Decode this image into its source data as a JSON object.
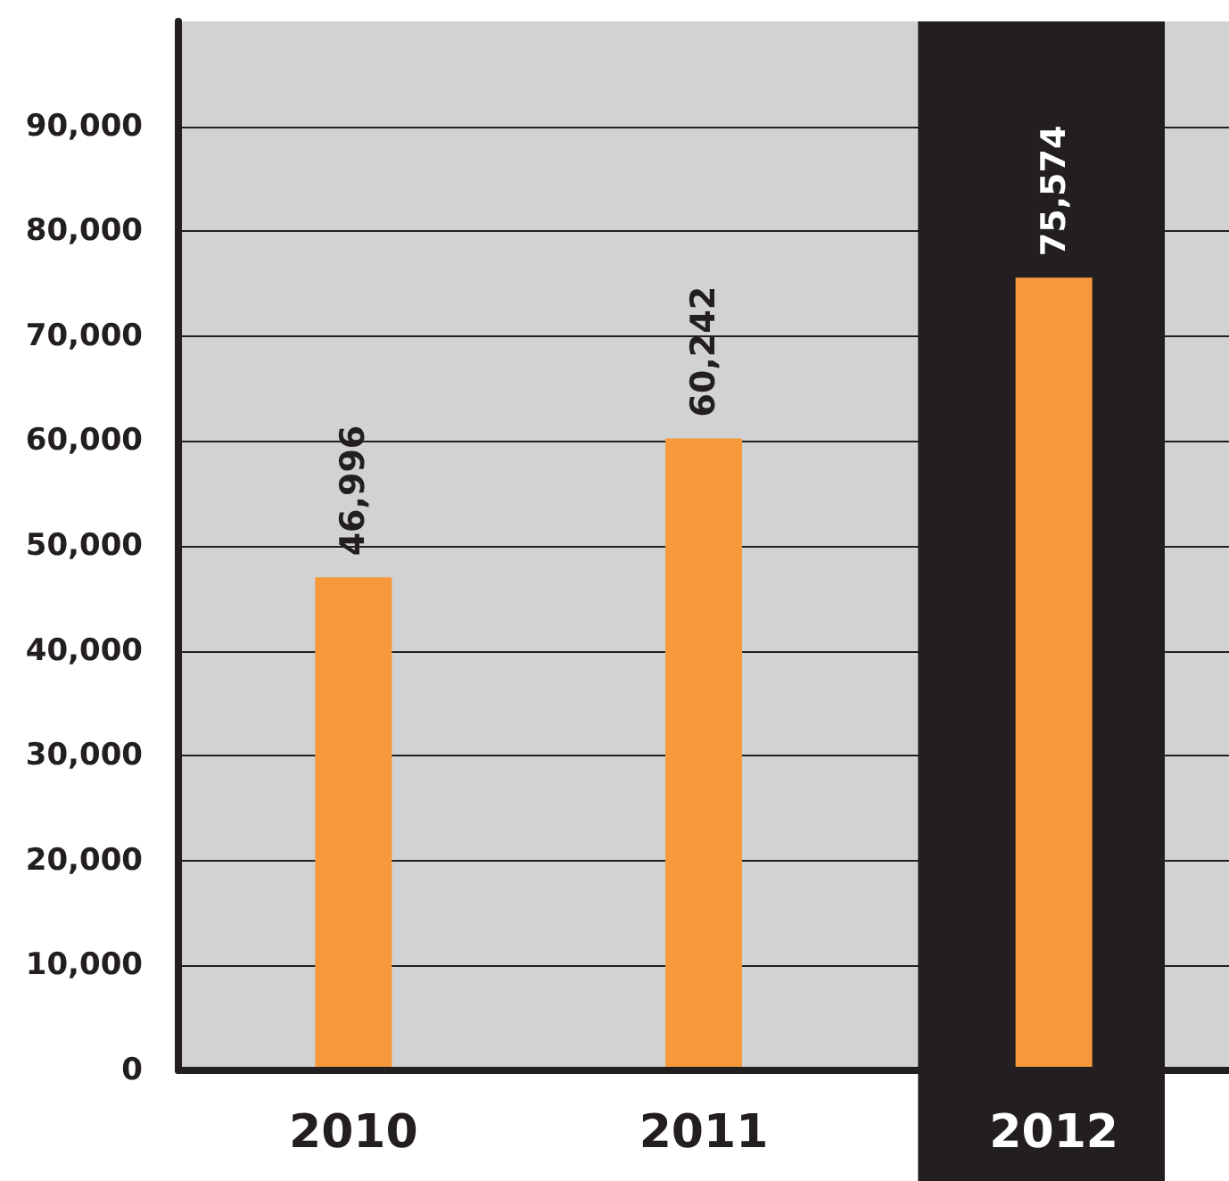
{
  "chart_data": {
    "type": "bar",
    "categories": [
      "2010",
      "2011",
      "2012"
    ],
    "values": [
      46996,
      60242,
      75574
    ],
    "color": "#f7993b",
    "value_labels": [
      "46,996",
      "60,242",
      "75,574"
    ],
    "ylim": [
      0,
      100000
    ],
    "yticks": [
      {
        "value": 0,
        "label": "0"
      },
      {
        "value": 10000,
        "label": "10,000"
      },
      {
        "value": 20000,
        "label": "20,000"
      },
      {
        "value": 30000,
        "label": "30,000"
      },
      {
        "value": 40000,
        "label": "40,000"
      },
      {
        "value": 50000,
        "label": "50,000"
      },
      {
        "value": 60000,
        "label": "60,000"
      },
      {
        "value": 70000,
        "label": "70,000"
      },
      {
        "value": 80000,
        "label": "80,000"
      },
      {
        "value": 90000,
        "label": "90,000"
      }
    ],
    "grid": "y",
    "bands": [
      {
        "axis": "x",
        "from": "2012",
        "to": "2012",
        "color": "#231f20"
      }
    ]
  }
}
